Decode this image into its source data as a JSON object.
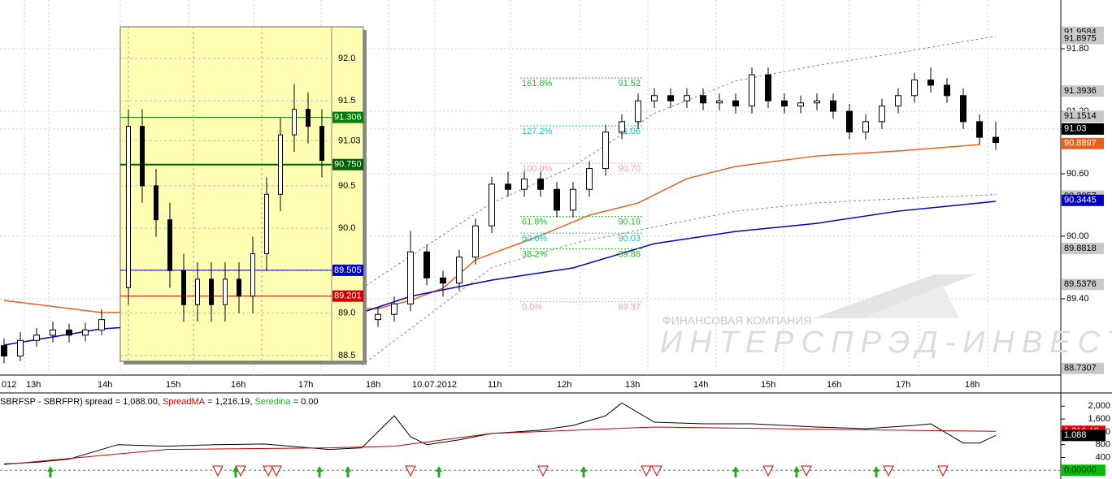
{
  "main": {
    "type": "candlestick",
    "ylim": [
      88.667,
      92.268
    ],
    "yticks": [
      {
        "value": 91.8,
        "label": "91.80"
      },
      {
        "value": 91.2,
        "label": "91.20"
      },
      91.03,
      {
        "value": 90.6,
        "label": "90.60"
      },
      {
        "value": 90,
        "label": "90.00"
      },
      {
        "value": 89.4,
        "label": "89.40"
      }
    ],
    "time_labels": [
      "012",
      "13h",
      "14h",
      "15h",
      "16h",
      "17h",
      "18h",
      "10.07.2012",
      "11h",
      "12h",
      "13h",
      "14h",
      "15h",
      "16h",
      "17h",
      "18h"
    ],
    "price_tags": [
      {
        "value": 91.9584,
        "color": "#c8c8c8",
        "text_color": "#000"
      },
      {
        "value": 91.8975,
        "color": "#c8c8c8",
        "text_color": "#000"
      },
      {
        "value": 91.3936,
        "color": "#c8c8c8",
        "text_color": "#000"
      },
      {
        "value": 91.1514,
        "color": "#c8c8c8",
        "text_color": "#000"
      },
      {
        "value": 91.03,
        "color": "#008000",
        "text_color": "#fff"
      },
      {
        "value": 91.03,
        "color": "#000000",
        "text_color": "#fff"
      },
      {
        "value": 90.8897,
        "color": "#e8601c",
        "text_color": "#fff"
      },
      {
        "value": 90.3857,
        "color": "#c8c8c8",
        "text_color": "#000"
      },
      {
        "value": 90.3445,
        "color": "#0000c0",
        "text_color": "#fff"
      },
      {
        "value": 89.8818,
        "color": "#c8c8c8",
        "text_color": "#000"
      },
      {
        "value": 89.5376,
        "color": "#c8c8c8",
        "text_color": "#000"
      },
      {
        "value": 88.7307,
        "color": "#c8c8c8",
        "text_color": "#000"
      }
    ],
    "candles": [
      [
        88.95,
        89.02,
        88.78,
        88.85
      ],
      [
        88.85,
        89.08,
        88.8,
        89.0
      ],
      [
        89.0,
        89.12,
        88.94,
        89.05
      ],
      [
        89.05,
        89.18,
        88.98,
        89.1
      ],
      [
        89.1,
        89.16,
        88.98,
        89.05
      ],
      [
        89.05,
        89.17,
        88.99,
        89.1
      ],
      [
        89.1,
        89.3,
        89.05,
        89.2
      ],
      null,
      null,
      null,
      null,
      null,
      null,
      null,
      null,
      null,
      null,
      null,
      null,
      null,
      null,
      null,
      null,
      [
        89.2,
        89.32,
        89.13,
        89.25
      ],
      [
        89.25,
        89.42,
        89.18,
        89.35
      ],
      [
        89.35,
        90.05,
        89.28,
        89.85
      ],
      [
        89.85,
        89.92,
        89.53,
        89.6
      ],
      [
        89.6,
        89.67,
        89.42,
        89.55
      ],
      [
        89.55,
        89.87,
        89.48,
        89.8
      ],
      [
        89.8,
        90.17,
        89.73,
        90.1
      ],
      [
        90.1,
        90.57,
        90.03,
        90.5
      ],
      [
        90.5,
        90.62,
        90.38,
        90.45
      ],
      [
        90.45,
        90.62,
        90.38,
        90.55
      ],
      [
        90.55,
        90.62,
        90.38,
        90.45
      ],
      [
        90.45,
        90.52,
        90.18,
        90.25
      ],
      [
        90.25,
        90.52,
        90.18,
        90.45
      ],
      [
        90.45,
        90.72,
        90.38,
        90.65
      ],
      [
        90.65,
        91.07,
        90.58,
        91.0
      ],
      [
        91.0,
        91.17,
        90.93,
        91.1
      ],
      [
        91.1,
        91.37,
        91.03,
        91.3
      ],
      [
        91.3,
        91.42,
        91.23,
        91.35
      ],
      [
        91.35,
        91.42,
        91.23,
        91.3
      ],
      [
        91.3,
        91.42,
        91.23,
        91.35
      ],
      [
        91.35,
        91.42,
        91.21,
        91.28
      ],
      [
        91.28,
        91.37,
        91.21,
        91.3
      ],
      [
        91.3,
        91.37,
        91.18,
        91.25
      ],
      [
        91.25,
        91.62,
        91.18,
        91.55
      ],
      [
        91.55,
        91.62,
        91.23,
        91.3
      ],
      [
        91.3,
        91.37,
        91.18,
        91.25
      ],
      [
        91.25,
        91.35,
        91.18,
        91.28
      ],
      [
        91.28,
        91.37,
        91.21,
        91.3
      ],
      [
        91.3,
        91.37,
        91.13,
        91.2
      ],
      [
        91.2,
        91.27,
        90.93,
        91.0
      ],
      [
        91.0,
        91.17,
        90.93,
        91.1
      ],
      [
        91.1,
        91.32,
        91.03,
        91.25
      ],
      [
        91.25,
        91.42,
        91.18,
        91.35
      ],
      [
        91.35,
        91.57,
        91.28,
        91.5
      ],
      [
        91.5,
        91.62,
        91.38,
        91.45
      ],
      [
        91.45,
        91.52,
        91.28,
        91.35
      ],
      [
        91.35,
        91.42,
        91.03,
        91.1
      ],
      [
        91.1,
        91.17,
        90.88,
        90.95
      ],
      [
        90.95,
        91.1,
        90.83,
        90.9
      ]
    ],
    "lines": [
      {
        "color": "#888888",
        "dash": true,
        "x": [
          22,
          30,
          35,
          40,
          45,
          50,
          55,
          61
        ],
        "values": [
          89.5,
          90.32,
          90.67,
          91.18,
          91.49,
          91.64,
          91.76,
          91.92
        ]
      },
      {
        "color": "#888888",
        "dash": true,
        "x": [
          22,
          30,
          35,
          40,
          45,
          50,
          55,
          61
        ],
        "values": [
          88.76,
          89.7,
          89.93,
          90.09,
          90.24,
          90.32,
          90.36,
          90.4
        ]
      },
      {
        "color": "#e8601c",
        "dash": false,
        "x": [
          0,
          6,
          23,
          25,
          27,
          29,
          33,
          36,
          39,
          42,
          45,
          50,
          55,
          60
        ],
        "values": [
          89.384,
          89.267,
          89.306,
          89.384,
          89.501,
          89.774,
          90.007,
          90.202,
          90.319,
          90.553,
          90.67,
          90.771,
          90.818,
          90.88
        ]
      },
      {
        "color": "#0000c0",
        "dash": false,
        "x": [
          0,
          6,
          22,
          25,
          30,
          35,
          40,
          45,
          50,
          55,
          61
        ],
        "values": [
          88.955,
          89.111,
          89.267,
          89.423,
          89.579,
          89.696,
          89.929,
          90.046,
          90.124,
          90.241,
          90.335
        ]
      }
    ],
    "fib": [
      {
        "label": "161.8%",
        "price": 91.52,
        "color": "#22bb22"
      },
      {
        "label": "127.2%",
        "price": 91.06,
        "color": "#22bbbb"
      },
      {
        "label": "100.0%",
        "price": 90.7,
        "price_label": "90.70",
        "color": "#f0a0b0"
      },
      {
        "label": "61.8%",
        "price": 90.19,
        "color": "#22bb22"
      },
      {
        "label": "50.0%",
        "price": 90.03,
        "color": "#22bbbb"
      },
      {
        "label": "38.2%",
        "price": 89.88,
        "color": "#22bb22"
      },
      {
        "label": "0.0%",
        "price": 89.37,
        "color": "#f0a0b0"
      }
    ],
    "watermark": {
      "company": "ФИНАНСОВАЯ КОМПАНИЯ",
      "name": "ИНТЕРСПРЭД-ИНВЕСТ"
    }
  },
  "inset": {
    "ylim": [
      88.433,
      92.373
    ],
    "yticks": [
      {
        "value": 92,
        "label": "92.0"
      },
      91.5,
      91.03,
      90.5,
      {
        "value": 90,
        "label": "90.0"
      },
      89.5,
      {
        "value": 89,
        "label": "89.0"
      },
      88.5
    ],
    "price_tags": [
      {
        "value": 91.306,
        "color": "#008000"
      },
      {
        "value": 90.75,
        "label": "90.750",
        "color": "#006000"
      },
      {
        "value": 89.505,
        "color": "#0000c0"
      },
      {
        "value": 89.201,
        "color": "#d00000"
      }
    ],
    "candles": [
      [
        89.3,
        91.4,
        89.1,
        91.2
      ],
      [
        91.2,
        91.4,
        90.3,
        90.5
      ],
      [
        90.5,
        90.7,
        89.9,
        90.1
      ],
      [
        90.1,
        90.3,
        89.3,
        89.5
      ],
      [
        89.5,
        89.7,
        88.9,
        89.1
      ],
      [
        89.1,
        89.6,
        88.9,
        89.4
      ],
      [
        89.4,
        89.6,
        88.9,
        89.1
      ],
      [
        89.1,
        89.6,
        88.9,
        89.4
      ],
      [
        89.4,
        89.6,
        89.0,
        89.2
      ],
      [
        89.2,
        89.9,
        89.0,
        89.7
      ],
      [
        89.7,
        90.6,
        89.5,
        90.4
      ],
      [
        90.4,
        91.3,
        90.2,
        91.1
      ],
      [
        91.1,
        91.7,
        90.9,
        91.4
      ],
      [
        91.4,
        91.6,
        91.0,
        91.2
      ],
      [
        91.2,
        91.4,
        90.6,
        90.8
      ]
    ]
  },
  "lower": {
    "type": "line",
    "legend": [
      {
        "text": "SBRFSP - SBRFPR) spread = 1,088.00, ",
        "color": "#000000"
      },
      {
        "text": "SpreadMA",
        "color": "#d00000"
      },
      {
        "text": " = 1,216.19, ",
        "color": "#000000"
      },
      {
        "text": "Seredina",
        "color": "#22aa22"
      },
      {
        "text": " = 0.00",
        "color": "#000000"
      }
    ],
    "ylim": [
      -271,
      2413
    ],
    "yticks": [
      {
        "value": 2000,
        "label": "2,000"
      },
      {
        "value": 1600,
        "label": "1,600"
      },
      {
        "value": 1200,
        "label": "1,200"
      },
      800,
      400
    ],
    "series": [
      {
        "color": "#000000",
        "x": [
          0,
          2,
          4,
          5,
          7,
          10,
          13,
          16,
          20,
          22,
          24,
          25,
          26,
          28,
          30,
          33,
          35,
          37,
          38,
          40,
          43,
          46,
          50,
          53,
          56,
          57,
          59,
          60,
          61
        ],
        "values": [
          200,
          250,
          350,
          500,
          800,
          750,
          800,
          820,
          650,
          700,
          1700,
          1050,
          800,
          950,
          1150,
          1250,
          1400,
          1700,
          2100,
          1500,
          1450,
          1450,
          1350,
          1300,
          1400,
          1450,
          850,
          850,
          1088
        ]
      },
      {
        "color": "#c00000",
        "x": [
          0,
          10,
          20,
          24,
          30,
          40,
          50,
          61
        ],
        "values": [
          180,
          650,
          700,
          750,
          1150,
          1350,
          1280,
          1216.19
        ]
      }
    ],
    "price_tags": [
      {
        "value": 1216.19,
        "label": "1,216.19",
        "color": "#e00000"
      },
      {
        "value": 1088,
        "label": "1,088",
        "color": "#000000"
      },
      {
        "value": 0,
        "label": "0.00000",
        "color": "#00c000"
      }
    ]
  }
}
